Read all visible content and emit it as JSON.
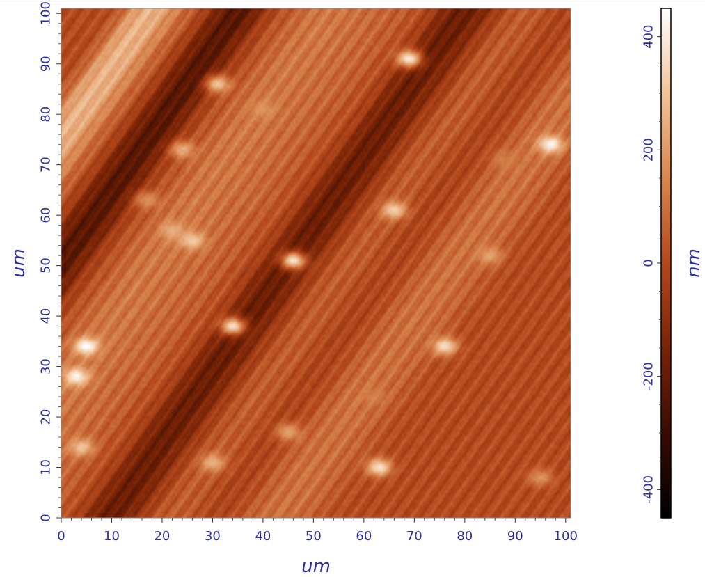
{
  "chart_data": {
    "type": "heatmap",
    "title": "",
    "xlabel": "um",
    "ylabel": "um",
    "colorbar_label": "nm",
    "xlim": [
      0,
      101
    ],
    "ylim": [
      0,
      101
    ],
    "x_ticks": [
      0,
      10,
      20,
      30,
      40,
      50,
      60,
      70,
      80,
      90,
      100
    ],
    "x_tick_labels": [
      "0",
      "10",
      "20",
      "30",
      "40",
      "50",
      "60",
      "70",
      "80",
      "90",
      "100"
    ],
    "y_ticks": [
      0,
      10,
      20,
      30,
      40,
      50,
      60,
      70,
      80,
      90,
      100
    ],
    "y_tick_labels": [
      "0",
      "10",
      "20",
      "30",
      "40",
      "50",
      "60",
      "70",
      "80",
      "90",
      "100"
    ],
    "color_range": [
      -450,
      450
    ],
    "colorbar_ticks": [
      -400,
      -200,
      0,
      200,
      400
    ],
    "colorbar_tick_labels": [
      "-400",
      "-200",
      "0",
      "200",
      "400"
    ],
    "colormap": [
      "#000000",
      "#3a0c02",
      "#7a2406",
      "#b5481c",
      "#d8864f",
      "#f1c39a",
      "#ffffff"
    ],
    "features": {
      "streak_direction_deg": 55,
      "stripes": [
        {
          "offset": 8,
          "value": 380,
          "width": 4
        },
        {
          "offset": 15,
          "value": 150,
          "width": 6
        },
        {
          "offset": 24,
          "value": -360,
          "width": 7
        },
        {
          "offset": 33,
          "value": 50,
          "width": 5
        },
        {
          "offset": 43,
          "value": 160,
          "width": 8
        },
        {
          "offset": 52,
          "value": 90,
          "width": 6
        },
        {
          "offset": 61,
          "value": 60,
          "width": 5
        },
        {
          "offset": 70,
          "value": -300,
          "width": 7
        },
        {
          "offset": 80,
          "value": 100,
          "width": 7
        },
        {
          "offset": 91,
          "value": -50,
          "width": 6
        },
        {
          "offset": 101,
          "value": 140,
          "width": 7
        }
      ],
      "particles": [
        {
          "x": 69,
          "y": 91,
          "value": 400
        },
        {
          "x": 31,
          "y": 86,
          "value": 300
        },
        {
          "x": 40,
          "y": 81,
          "value": 180
        },
        {
          "x": 24,
          "y": 73,
          "value": 250
        },
        {
          "x": 97,
          "y": 74,
          "value": 430
        },
        {
          "x": 66,
          "y": 61,
          "value": 330
        },
        {
          "x": 22,
          "y": 57,
          "value": 250
        },
        {
          "x": 26,
          "y": 55,
          "value": 320
        },
        {
          "x": 46,
          "y": 51,
          "value": 390
        },
        {
          "x": 17,
          "y": 63,
          "value": 180
        },
        {
          "x": 34,
          "y": 38,
          "value": 370
        },
        {
          "x": 76,
          "y": 34,
          "value": 370
        },
        {
          "x": 5,
          "y": 34,
          "value": 450
        },
        {
          "x": 3,
          "y": 28,
          "value": 430
        },
        {
          "x": 62,
          "y": 24,
          "value": 130
        },
        {
          "x": 45,
          "y": 17,
          "value": 220
        },
        {
          "x": 63,
          "y": 10,
          "value": 380
        },
        {
          "x": 30,
          "y": 11,
          "value": 260
        },
        {
          "x": 4,
          "y": 14,
          "value": 300
        },
        {
          "x": 88,
          "y": 71,
          "value": 130
        },
        {
          "x": 85,
          "y": 52,
          "value": 220
        },
        {
          "x": 95,
          "y": 8,
          "value": 180
        }
      ]
    }
  }
}
